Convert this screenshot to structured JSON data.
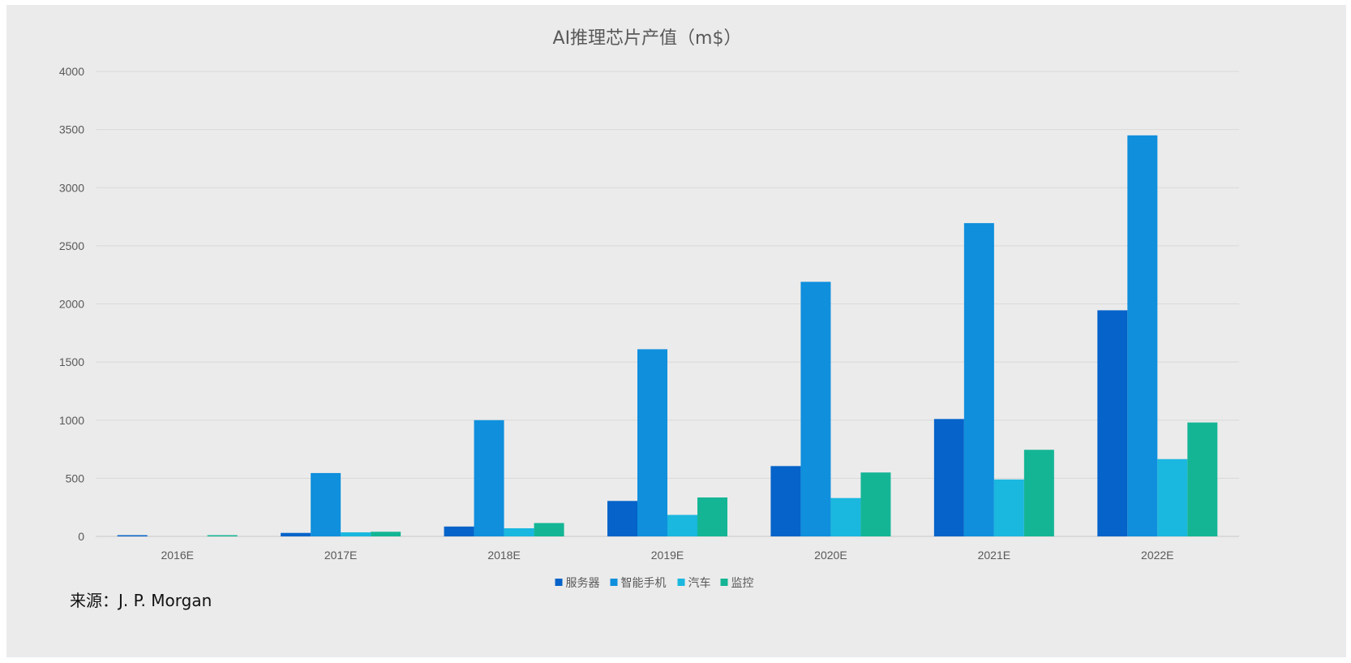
{
  "chart_data": {
    "type": "bar",
    "title": "AI推理芯片产值（m$）",
    "categories": [
      "2016E",
      "2017E",
      "2018E",
      "2019E",
      "2020E",
      "2021E",
      "2022E"
    ],
    "series": [
      {
        "name": "服务器",
        "color": "#0563c9",
        "values": [
          5,
          30,
          85,
          305,
          605,
          1010,
          1945
        ]
      },
      {
        "name": "智能手机",
        "color": "#0f8fdc",
        "values": [
          0,
          545,
          1000,
          1610,
          2190,
          2695,
          3450
        ]
      },
      {
        "name": "汽车",
        "color": "#1ab7df",
        "values": [
          0,
          35,
          70,
          185,
          330,
          490,
          665
        ]
      },
      {
        "name": "监控",
        "color": "#14b595",
        "values": [
          5,
          40,
          115,
          335,
          550,
          745,
          980
        ]
      }
    ],
    "ylim": [
      0,
      4000
    ],
    "yticks": [
      0,
      500,
      1000,
      1500,
      2000,
      2500,
      3000,
      3500,
      4000
    ],
    "grid": true,
    "legend_position": "bottom"
  },
  "source": "来源：J. P. Morgan"
}
